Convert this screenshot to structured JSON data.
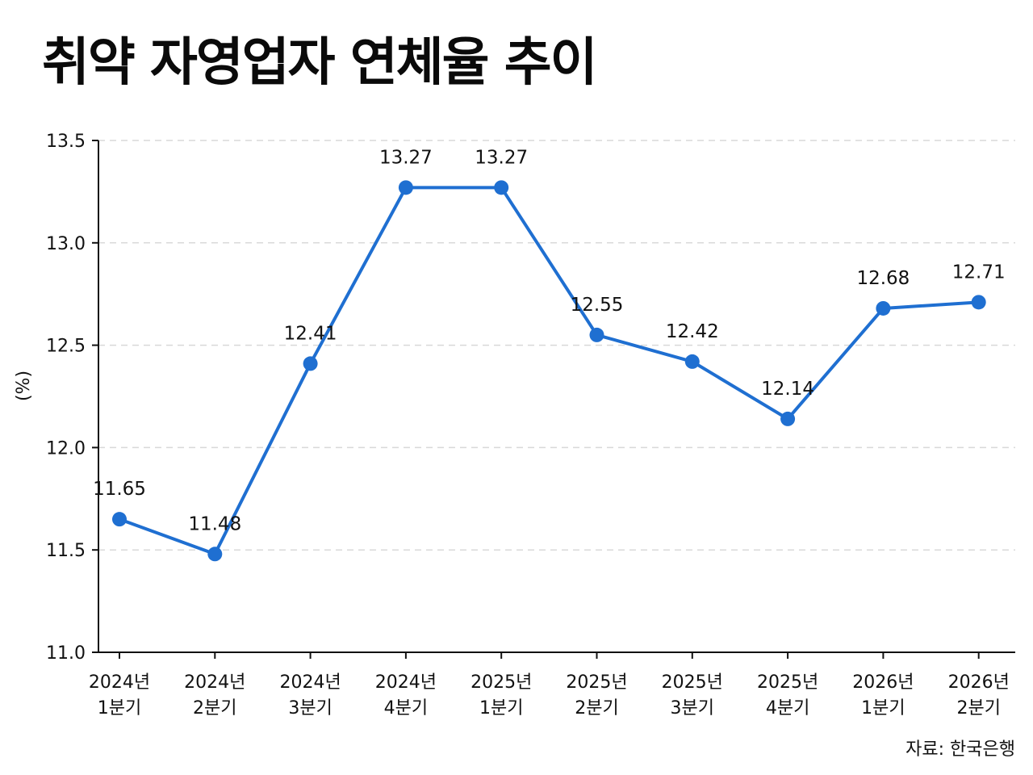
{
  "title": "취약 자영업자 연체율 추이",
  "source": "자료: 한국은행",
  "colors": {
    "line": "#1f6fd1",
    "grid": "#d9d9d9",
    "axis": "#111111"
  },
  "chart_data": {
    "type": "line",
    "title": "취약 자영업자 연체율 추이",
    "ylabel": "(%)",
    "xlabel": "",
    "ylim": [
      11.0,
      13.5
    ],
    "yticks": [
      "11.0",
      "11.5",
      "12.0",
      "12.5",
      "13.0",
      "13.5"
    ],
    "grid": "horizontal dashed",
    "categories": [
      [
        "2024년",
        "1분기"
      ],
      [
        "2024년",
        "2분기"
      ],
      [
        "2024년",
        "3분기"
      ],
      [
        "2024년",
        "4분기"
      ],
      [
        "2025년",
        "1분기"
      ],
      [
        "2025년",
        "2분기"
      ],
      [
        "2025년",
        "3분기"
      ],
      [
        "2025년",
        "4분기"
      ],
      [
        "2026년",
        "1분기"
      ],
      [
        "2026년",
        "2분기"
      ]
    ],
    "series": [
      {
        "values": [
          11.65,
          11.48,
          12.41,
          13.27,
          13.27,
          12.55,
          12.42,
          12.14,
          12.68,
          12.71
        ],
        "labels": [
          "11.65",
          "11.48",
          "12.41",
          "13.27",
          "13.27",
          "12.55",
          "12.42",
          "12.14",
          "12.68",
          "12.71"
        ]
      }
    ]
  }
}
